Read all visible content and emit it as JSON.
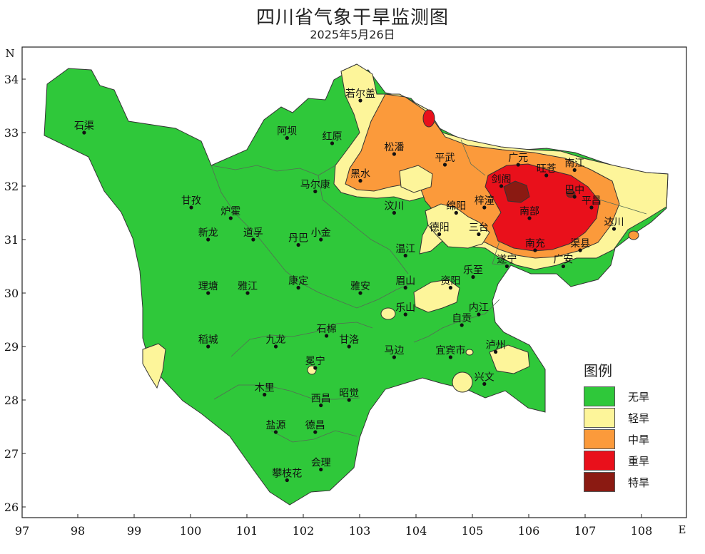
{
  "title": "四川省气象干旱监测图",
  "subtitle": "2025年5月26日",
  "axes": {
    "x_ticks": [
      "97",
      "98",
      "99",
      "100",
      "101",
      "102",
      "103",
      "104",
      "105",
      "106",
      "107",
      "108"
    ],
    "y_ticks": [
      "26",
      "27",
      "28",
      "29",
      "30",
      "31",
      "32",
      "33",
      "34"
    ],
    "x_letter": "E",
    "y_letter": "N"
  },
  "legend": {
    "title": "图例",
    "items": [
      {
        "label": "无旱",
        "color": "#2fc83a"
      },
      {
        "label": "轻旱",
        "color": "#fdf59a"
      },
      {
        "label": "中旱",
        "color": "#fb9a3b"
      },
      {
        "label": "重旱",
        "color": "#e9101b"
      },
      {
        "label": "特旱",
        "color": "#8b1a12"
      }
    ]
  },
  "cities": [
    {
      "name": "石渠",
      "lon": 98.1,
      "lat": 33.0
    },
    {
      "name": "若尔盖",
      "lon": 103.0,
      "lat": 33.6
    },
    {
      "name": "阿坝",
      "lon": 101.7,
      "lat": 32.9
    },
    {
      "name": "红原",
      "lon": 102.5,
      "lat": 32.8
    },
    {
      "name": "松潘",
      "lon": 103.6,
      "lat": 32.6
    },
    {
      "name": "平武",
      "lon": 104.5,
      "lat": 32.4
    },
    {
      "name": "广元",
      "lon": 105.8,
      "lat": 32.4
    },
    {
      "name": "旺苍",
      "lon": 106.3,
      "lat": 32.2
    },
    {
      "name": "南江",
      "lon": 106.8,
      "lat": 32.3
    },
    {
      "name": "剑阁",
      "lon": 105.5,
      "lat": 32.0
    },
    {
      "name": "巴中",
      "lon": 106.8,
      "lat": 31.8
    },
    {
      "name": "黑水",
      "lon": 103.0,
      "lat": 32.1
    },
    {
      "name": "马尔康",
      "lon": 102.2,
      "lat": 31.9
    },
    {
      "name": "甘孜",
      "lon": 100.0,
      "lat": 31.6
    },
    {
      "name": "炉霍",
      "lon": 100.7,
      "lat": 31.4
    },
    {
      "name": "汶川",
      "lon": 103.6,
      "lat": 31.5
    },
    {
      "name": "绵阳",
      "lon": 104.7,
      "lat": 31.5
    },
    {
      "name": "梓潼",
      "lon": 105.2,
      "lat": 31.6
    },
    {
      "name": "南部",
      "lon": 106.0,
      "lat": 31.4
    },
    {
      "name": "平昌",
      "lon": 107.1,
      "lat": 31.6
    },
    {
      "name": "达川",
      "lon": 107.5,
      "lat": 31.2
    },
    {
      "name": "新龙",
      "lon": 100.3,
      "lat": 31.0
    },
    {
      "name": "道孚",
      "lon": 101.1,
      "lat": 31.0
    },
    {
      "name": "丹巴",
      "lon": 101.9,
      "lat": 30.9
    },
    {
      "name": "小金",
      "lon": 102.3,
      "lat": 31.0
    },
    {
      "name": "德阳",
      "lon": 104.4,
      "lat": 31.1
    },
    {
      "name": "三台",
      "lon": 105.1,
      "lat": 31.1
    },
    {
      "name": "南充",
      "lon": 106.1,
      "lat": 30.8
    },
    {
      "name": "渠县",
      "lon": 106.9,
      "lat": 30.8
    },
    {
      "name": "温江",
      "lon": 103.8,
      "lat": 30.7
    },
    {
      "name": "遂宁",
      "lon": 105.6,
      "lat": 30.5
    },
    {
      "name": "广安",
      "lon": 106.6,
      "lat": 30.5
    },
    {
      "name": "乐至",
      "lon": 105.0,
      "lat": 30.3
    },
    {
      "name": "理塘",
      "lon": 100.3,
      "lat": 30.0
    },
    {
      "name": "雅江",
      "lon": 101.0,
      "lat": 30.0
    },
    {
      "name": "康定",
      "lon": 101.9,
      "lat": 30.1
    },
    {
      "name": "雅安",
      "lon": 103.0,
      "lat": 30.0
    },
    {
      "name": "眉山",
      "lon": 103.8,
      "lat": 30.1
    },
    {
      "name": "资阳",
      "lon": 104.6,
      "lat": 30.1
    },
    {
      "name": "内江",
      "lon": 105.1,
      "lat": 29.6
    },
    {
      "name": "乐山",
      "lon": 103.8,
      "lat": 29.6
    },
    {
      "name": "自贡",
      "lon": 104.8,
      "lat": 29.4
    },
    {
      "name": "稻城",
      "lon": 100.3,
      "lat": 29.0
    },
    {
      "name": "九龙",
      "lon": 101.5,
      "lat": 29.0
    },
    {
      "name": "石棉",
      "lon": 102.4,
      "lat": 29.2
    },
    {
      "name": "甘洛",
      "lon": 102.8,
      "lat": 29.0
    },
    {
      "name": "马边",
      "lon": 103.6,
      "lat": 28.8
    },
    {
      "name": "宜宾市",
      "lon": 104.6,
      "lat": 28.8
    },
    {
      "name": "泸州",
      "lon": 105.4,
      "lat": 28.9
    },
    {
      "name": "冕宁",
      "lon": 102.2,
      "lat": 28.6
    },
    {
      "name": "兴文",
      "lon": 105.2,
      "lat": 28.3
    },
    {
      "name": "木里",
      "lon": 101.3,
      "lat": 28.1
    },
    {
      "name": "西昌",
      "lon": 102.3,
      "lat": 27.9
    },
    {
      "name": "昭觉",
      "lon": 102.8,
      "lat": 28.0
    },
    {
      "name": "盐源",
      "lon": 101.5,
      "lat": 27.4
    },
    {
      "name": "德昌",
      "lon": 102.2,
      "lat": 27.4
    },
    {
      "name": "会理",
      "lon": 102.3,
      "lat": 26.7
    },
    {
      "name": "攀枝花",
      "lon": 101.7,
      "lat": 26.5
    }
  ]
}
